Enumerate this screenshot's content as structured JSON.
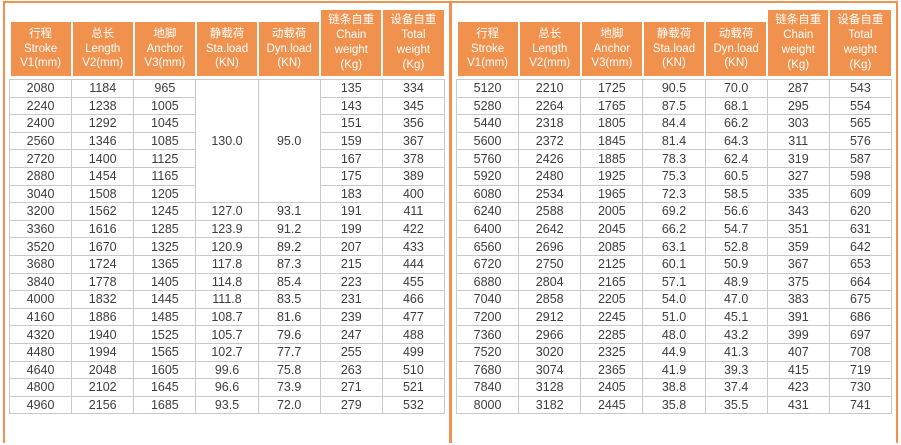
{
  "colors": {
    "accent": "#F0914E",
    "grid": "#C9C9C9",
    "header_text": "#FFFFFF",
    "cell_text": "#3D3D3D"
  },
  "headers": [
    {
      "lines": [
        "行程",
        "Stroke",
        "V1(mm)"
      ]
    },
    {
      "lines": [
        "总长",
        "Length",
        "V2(mm)"
      ]
    },
    {
      "lines": [
        "地脚",
        "Anchor",
        "V3(mm)"
      ]
    },
    {
      "lines": [
        "静载荷",
        "Sta.load",
        "(KN)"
      ]
    },
    {
      "lines": [
        "动载荷",
        "Dyn.load",
        "(KN)"
      ]
    },
    {
      "lines": [
        "链条自重",
        "Chain",
        "weight",
        "(Kg)"
      ]
    },
    {
      "lines": [
        "设备自重",
        "Total",
        "weight",
        "(Kg)"
      ]
    }
  ],
  "left": {
    "spans": [
      {
        "row": 0,
        "col": 3,
        "rowspan": 7
      },
      {
        "row": 0,
        "col": 4,
        "rowspan": 7
      }
    ],
    "rows": [
      [
        "2080",
        "1184",
        "965",
        "130.0",
        "95.0",
        "135",
        "334"
      ],
      [
        "2240",
        "1238",
        "1005",
        null,
        null,
        "143",
        "345"
      ],
      [
        "2400",
        "1292",
        "1045",
        null,
        null,
        "151",
        "356"
      ],
      [
        "2560",
        "1346",
        "1085",
        null,
        null,
        "159",
        "367"
      ],
      [
        "2720",
        "1400",
        "1125",
        null,
        null,
        "167",
        "378"
      ],
      [
        "2880",
        "1454",
        "1165",
        null,
        null,
        "175",
        "389"
      ],
      [
        "3040",
        "1508",
        "1205",
        null,
        null,
        "183",
        "400"
      ],
      [
        "3200",
        "1562",
        "1245",
        "127.0",
        "93.1",
        "191",
        "411"
      ],
      [
        "3360",
        "1616",
        "1285",
        "123.9",
        "91.2",
        "199",
        "422"
      ],
      [
        "3520",
        "1670",
        "1325",
        "120.9",
        "89.2",
        "207",
        "433"
      ],
      [
        "3680",
        "1724",
        "1365",
        "117.8",
        "87.3",
        "215",
        "444"
      ],
      [
        "3840",
        "1778",
        "1405",
        "114.8",
        "85.4",
        "223",
        "455"
      ],
      [
        "4000",
        "1832",
        "1445",
        "111.8",
        "83.5",
        "231",
        "466"
      ],
      [
        "4160",
        "1886",
        "1485",
        "108.7",
        "81.6",
        "239",
        "477"
      ],
      [
        "4320",
        "1940",
        "1525",
        "105.7",
        "79.6",
        "247",
        "488"
      ],
      [
        "4480",
        "1994",
        "1565",
        "102.7",
        "77.7",
        "255",
        "499"
      ],
      [
        "4640",
        "2048",
        "1605",
        "99.6",
        "75.8",
        "263",
        "510"
      ],
      [
        "4800",
        "2102",
        "1645",
        "96.6",
        "73.9",
        "271",
        "521"
      ],
      [
        "4960",
        "2156",
        "1685",
        "93.5",
        "72.0",
        "279",
        "532"
      ]
    ]
  },
  "right": {
    "spans": [],
    "rows": [
      [
        "5120",
        "2210",
        "1725",
        "90.5",
        "70.0",
        "287",
        "543"
      ],
      [
        "5280",
        "2264",
        "1765",
        "87.5",
        "68.1",
        "295",
        "554"
      ],
      [
        "5440",
        "2318",
        "1805",
        "84.4",
        "66.2",
        "303",
        "565"
      ],
      [
        "5600",
        "2372",
        "1845",
        "81.4",
        "64.3",
        "311",
        "576"
      ],
      [
        "5760",
        "2426",
        "1885",
        "78.3",
        "62.4",
        "319",
        "587"
      ],
      [
        "5920",
        "2480",
        "1925",
        "75.3",
        "60.5",
        "327",
        "598"
      ],
      [
        "6080",
        "2534",
        "1965",
        "72.3",
        "58.5",
        "335",
        "609"
      ],
      [
        "6240",
        "2588",
        "2005",
        "69.2",
        "56.6",
        "343",
        "620"
      ],
      [
        "6400",
        "2642",
        "2045",
        "66.2",
        "54.7",
        "351",
        "631"
      ],
      [
        "6560",
        "2696",
        "2085",
        "63.1",
        "52.8",
        "359",
        "642"
      ],
      [
        "6720",
        "2750",
        "2125",
        "60.1",
        "50.9",
        "367",
        "653"
      ],
      [
        "6880",
        "2804",
        "2165",
        "57.1",
        "48.9",
        "375",
        "664"
      ],
      [
        "7040",
        "2858",
        "2205",
        "54.0",
        "47.0",
        "383",
        "675"
      ],
      [
        "7200",
        "2912",
        "2245",
        "51.0",
        "45.1",
        "391",
        "686"
      ],
      [
        "7360",
        "2966",
        "2285",
        "48.0",
        "43.2",
        "399",
        "697"
      ],
      [
        "7520",
        "3020",
        "2325",
        "44.9",
        "41.3",
        "407",
        "708"
      ],
      [
        "7680",
        "3074",
        "2365",
        "41.9",
        "39.3",
        "415",
        "719"
      ],
      [
        "7840",
        "3128",
        "2405",
        "38.8",
        "37.4",
        "423",
        "730"
      ],
      [
        "8000",
        "3182",
        "2445",
        "35.8",
        "35.5",
        "431",
        "741"
      ]
    ]
  }
}
